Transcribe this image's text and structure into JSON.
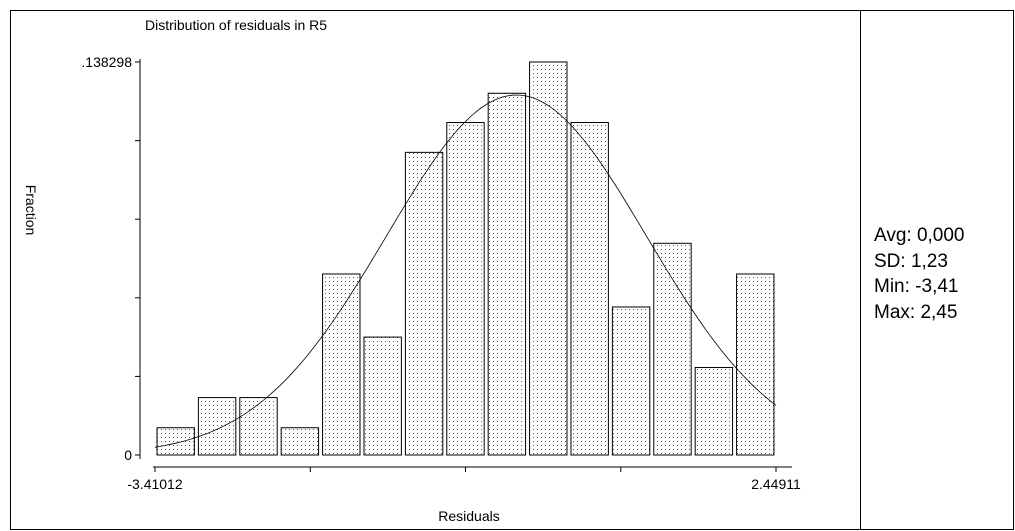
{
  "chart_data": {
    "type": "bar",
    "title": "Distribution of residuals in R5",
    "xlabel": "Residuals",
    "ylabel": "Fraction",
    "ylim": [
      0,
      0.138298
    ],
    "y_tick_labels": [
      "0",
      ".138298"
    ],
    "x_tick_labels": [
      "-3.41012",
      "2.44911"
    ],
    "xlim": [
      -3.41012,
      2.44911
    ],
    "bin_width": 0.3906,
    "bin_start": -3.41012,
    "values": [
      0.0096,
      0.0202,
      0.0202,
      0.0096,
      0.0637,
      0.0415,
      0.1065,
      0.117,
      0.1273,
      0.1383,
      0.117,
      0.0521,
      0.0745,
      0.0308,
      0.0637
    ],
    "normal_curve": {
      "mean": 0.0,
      "sd": 1.23
    },
    "grid": false,
    "legend": "none"
  },
  "stats": {
    "avg": "Avg: 0,000",
    "sd": "SD: 1,23",
    "min": "Min: -3,41",
    "max": "Max: 2,45"
  }
}
